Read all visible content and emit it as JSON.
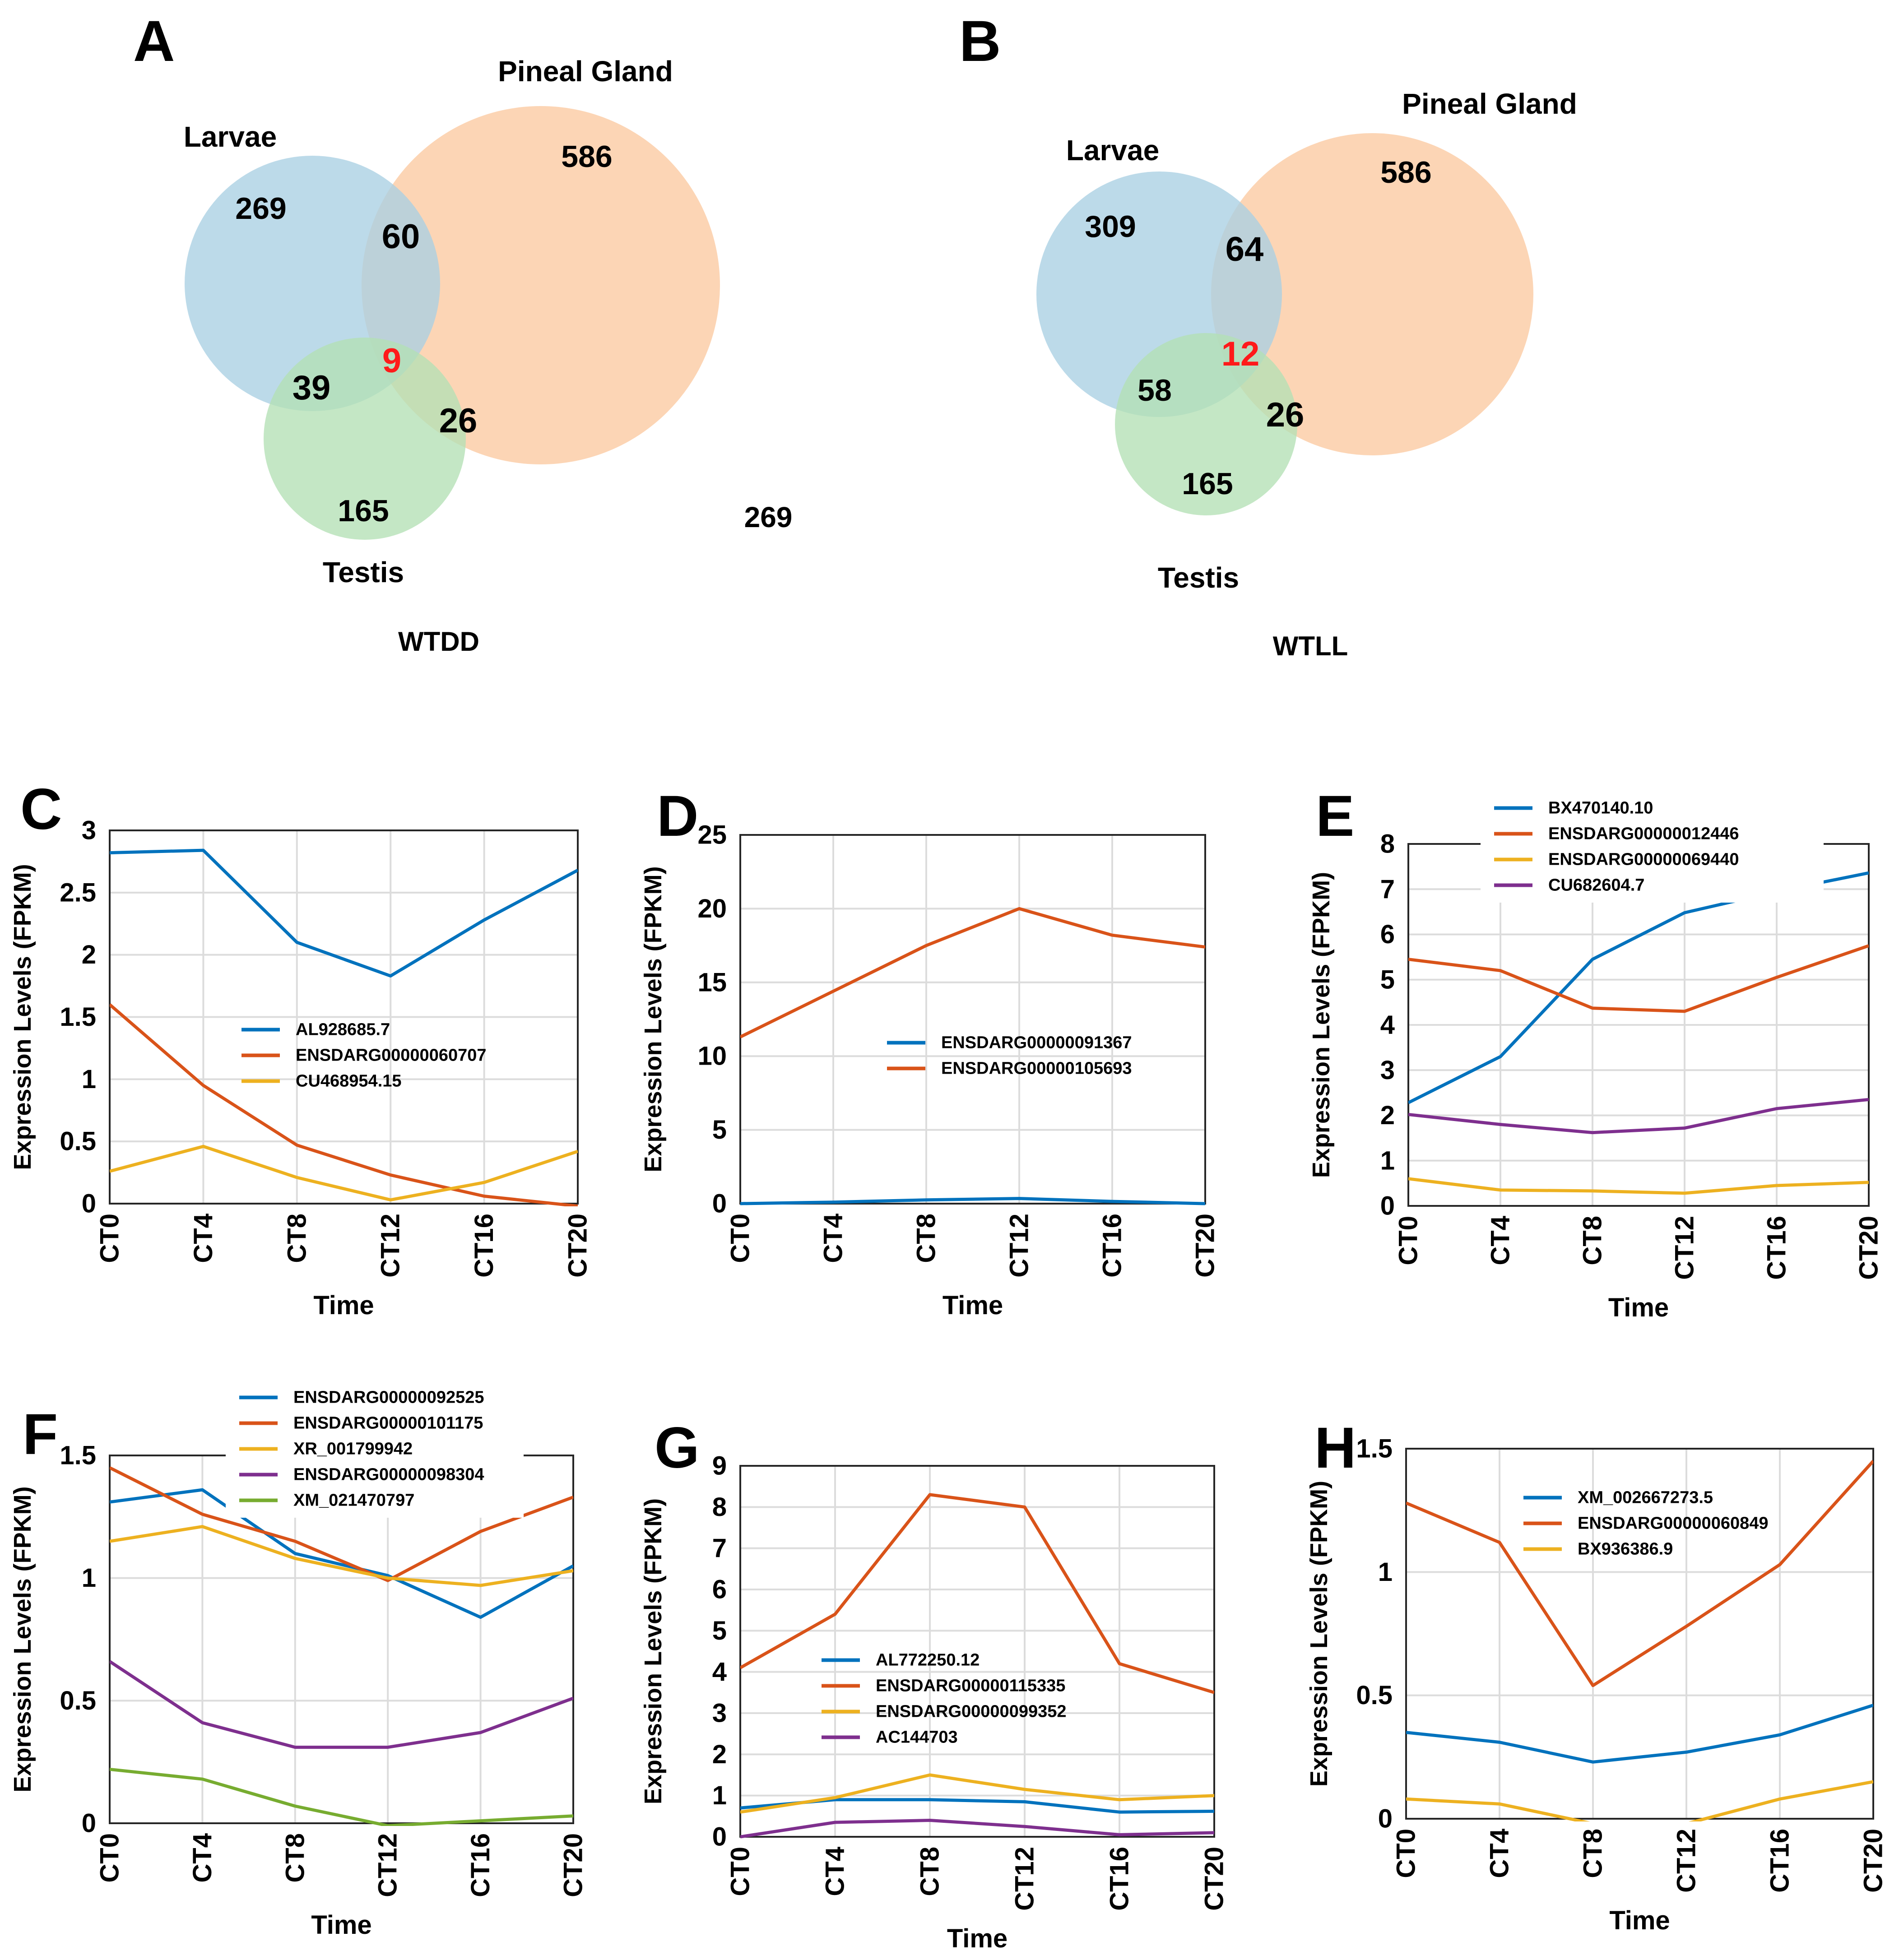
{
  "venn_a": {
    "panel_letter": "A",
    "label_larvae": "Larvae",
    "label_pineal": "Pineal Gland",
    "label_testis": "Testis",
    "n_larvae_only": "269",
    "n_pineal_only": "586",
    "n_testis_only": "165",
    "n_larvae_pineal": "60",
    "n_larvae_testis": "39",
    "n_pineal_testis": "26",
    "n_all": "9",
    "n_outside": "269",
    "condition": "WTDD"
  },
  "venn_b": {
    "panel_letter": "B",
    "label_larvae": "Larvae",
    "label_pineal": "Pineal Gland",
    "label_testis": "Testis",
    "n_larvae_only": "309",
    "n_pineal_only": "586",
    "n_testis_only": "165",
    "n_larvae_pineal": "64",
    "n_larvae_testis": "58",
    "n_pineal_testis": "26",
    "n_all": "12",
    "condition": "WTLL"
  },
  "colors": {
    "blue": "#0072BD",
    "orange": "#D95319",
    "yellow": "#EDB120",
    "purple": "#7E2F8E",
    "green": "#77AC30",
    "venn_larvae": "#a9cfe3",
    "venn_pineal": "#fbc9a0",
    "venn_testis": "#b3e0b5",
    "venn_center": "#ff1a1a"
  },
  "chart_data": [
    {
      "panel": "C",
      "type": "line",
      "xlabel": "Time",
      "ylabel": "Expression Levels (FPKM)",
      "categories": [
        "CT0",
        "CT4",
        "CT8",
        "CT12",
        "CT16",
        "CT20"
      ],
      "ylim": [
        0,
        3
      ],
      "yticks": [
        0,
        0.5,
        1,
        1.5,
        2,
        2.5,
        3
      ],
      "ytick_labels": [
        "0",
        "0.5",
        "1",
        "1.5",
        "2",
        "2.5",
        "3"
      ],
      "series": [
        {
          "name": "AL928685.7",
          "color": "#0072BD",
          "values": [
            2.82,
            2.84,
            2.1,
            1.83,
            2.28,
            2.68
          ]
        },
        {
          "name": "ENSDARG00000060707",
          "color": "#D95319",
          "values": [
            1.6,
            0.95,
            0.47,
            0.23,
            0.06,
            -0.02
          ]
        },
        {
          "name": "CU468954.15",
          "color": "#EDB120",
          "values": [
            0.26,
            0.46,
            0.21,
            0.03,
            0.17,
            0.42
          ]
        }
      ]
    },
    {
      "panel": "D",
      "type": "line",
      "xlabel": "Time",
      "ylabel": "Expression Levels (FPKM)",
      "categories": [
        "CT0",
        "CT4",
        "CT8",
        "CT12",
        "CT16",
        "CT20"
      ],
      "ylim": [
        0,
        25
      ],
      "yticks": [
        0,
        5,
        10,
        15,
        20,
        25
      ],
      "ytick_labels": [
        "0",
        "5",
        "10",
        "15",
        "20",
        "25"
      ],
      "series": [
        {
          "name": "ENSDARG00000091367",
          "color": "#0072BD",
          "values": [
            0.0,
            0.1,
            0.25,
            0.35,
            0.15,
            0.0
          ]
        },
        {
          "name": "ENSDARG00000105693",
          "color": "#D95319",
          "values": [
            11.3,
            14.4,
            17.5,
            20.0,
            18.2,
            17.4
          ]
        }
      ]
    },
    {
      "panel": "E",
      "type": "line",
      "xlabel": "Time",
      "ylabel": "Expression Levels (FPKM)",
      "categories": [
        "CT0",
        "CT4",
        "CT8",
        "CT12",
        "CT16",
        "CT20"
      ],
      "ylim": [
        0,
        8
      ],
      "yticks": [
        0,
        1,
        2,
        3,
        4,
        5,
        6,
        7,
        8
      ],
      "ytick_labels": [
        "0",
        "1",
        "2",
        "3",
        "4",
        "5",
        "6",
        "7",
        "8"
      ],
      "series": [
        {
          "name": "BX470140.10",
          "color": "#0072BD",
          "values": [
            2.28,
            3.3,
            5.45,
            6.48,
            6.95,
            7.36
          ]
        },
        {
          "name": "ENSDARG00000012446",
          "color": "#D95319",
          "values": [
            5.45,
            5.2,
            4.37,
            4.3,
            5.05,
            5.75
          ]
        },
        {
          "name": "ENSDARG00000069440",
          "color": "#EDB120",
          "values": [
            0.6,
            0.35,
            0.33,
            0.28,
            0.45,
            0.52
          ]
        },
        {
          "name": "CU682604.7",
          "color": "#7E2F8E",
          "values": [
            2.02,
            1.8,
            1.62,
            1.72,
            2.15,
            2.35
          ]
        }
      ]
    },
    {
      "panel": "F",
      "type": "line",
      "xlabel": "Time",
      "ylabel": "Expression Levels (FPKM)",
      "categories": [
        "CT0",
        "CT4",
        "CT8",
        "CT12",
        "CT16",
        "CT20"
      ],
      "ylim": [
        0,
        1.5
      ],
      "yticks": [
        0,
        0.5,
        1,
        1.5
      ],
      "ytick_labels": [
        "0",
        "0.5",
        "1",
        "1.5"
      ],
      "series": [
        {
          "name": "ENSDARG00000092525",
          "color": "#0072BD",
          "values": [
            1.31,
            1.36,
            1.1,
            1.01,
            0.84,
            1.05
          ]
        },
        {
          "name": "ENSDARG00000101175",
          "color": "#D95319",
          "values": [
            1.45,
            1.26,
            1.15,
            0.99,
            1.19,
            1.33
          ]
        },
        {
          "name": "XR_001799942",
          "color": "#EDB120",
          "values": [
            1.15,
            1.21,
            1.08,
            1.0,
            0.97,
            1.03
          ]
        },
        {
          "name": "ENSDARG00000098304",
          "color": "#7E2F8E",
          "values": [
            0.66,
            0.41,
            0.31,
            0.31,
            0.37,
            0.51
          ]
        },
        {
          "name": "XM_021470797",
          "color": "#77AC30",
          "values": [
            0.22,
            0.18,
            0.07,
            -0.01,
            0.01,
            0.03
          ]
        }
      ]
    },
    {
      "panel": "G",
      "type": "line",
      "xlabel": "Time",
      "ylabel": "Expression Levels (FPKM)",
      "categories": [
        "CT0",
        "CT4",
        "CT8",
        "CT12",
        "CT16",
        "CT20"
      ],
      "ylim": [
        0,
        9
      ],
      "yticks": [
        0,
        1,
        2,
        3,
        4,
        5,
        6,
        7,
        8,
        9
      ],
      "ytick_labels": [
        "0",
        "1",
        "2",
        "3",
        "4",
        "5",
        "6",
        "7",
        "8",
        "9"
      ],
      "series": [
        {
          "name": "AL772250.12",
          "color": "#0072BD",
          "values": [
            0.7,
            0.9,
            0.9,
            0.85,
            0.6,
            0.62
          ]
        },
        {
          "name": "ENSDARG00000115335",
          "color": "#D95319",
          "values": [
            4.1,
            5.4,
            8.3,
            8.0,
            4.2,
            3.5
          ]
        },
        {
          "name": "ENSDARG00000099352",
          "color": "#EDB120",
          "values": [
            0.6,
            0.95,
            1.5,
            1.15,
            0.9,
            1.0
          ]
        },
        {
          "name": "AC144703",
          "color": "#7E2F8E",
          "values": [
            0.0,
            0.35,
            0.4,
            0.25,
            0.05,
            0.1
          ]
        }
      ]
    },
    {
      "panel": "H",
      "type": "line",
      "xlabel": "Time",
      "ylabel": "Expression Levels (FPKM)",
      "categories": [
        "CT0",
        "CT4",
        "CT8",
        "CT12",
        "CT16",
        "CT20"
      ],
      "ylim": [
        0,
        1.5
      ],
      "yticks": [
        0,
        0.5,
        1,
        1.5
      ],
      "ytick_labels": [
        "0",
        "0.5",
        "1",
        "1.5"
      ],
      "series": [
        {
          "name": "XM_002667273.5",
          "color": "#0072BD",
          "values": [
            0.35,
            0.31,
            0.23,
            0.27,
            0.34,
            0.46
          ]
        },
        {
          "name": "ENSDARG00000060849",
          "color": "#D95319",
          "values": [
            1.28,
            1.12,
            0.54,
            0.78,
            1.03,
            1.45
          ]
        },
        {
          "name": "BX936386.9",
          "color": "#EDB120",
          "values": [
            0.08,
            0.06,
            -0.02,
            -0.02,
            0.08,
            0.15
          ]
        }
      ]
    }
  ]
}
